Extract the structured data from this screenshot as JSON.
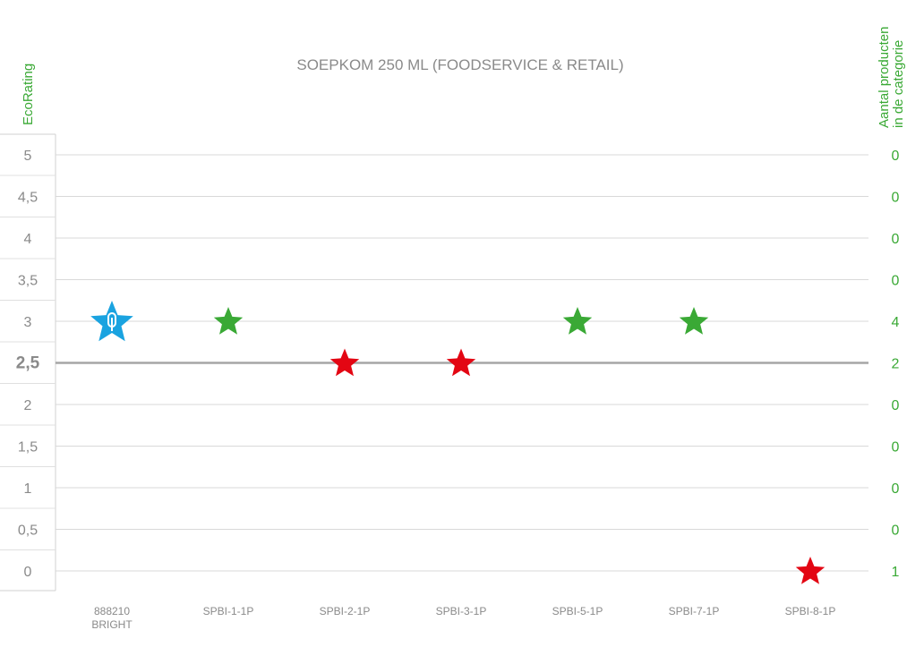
{
  "chart_data": {
    "type": "scatter",
    "title": "SOEPKOM 250 ML (FOODSERVICE & RETAIL)",
    "ylabel": "EcoRating",
    "ylabel_right": "Aantal producten\nin de categorie",
    "ylim": [
      0,
      5
    ],
    "y_ticks": [
      "0",
      "0,5",
      "1",
      "1,5",
      "2",
      "2,5",
      "3",
      "3,5",
      "4",
      "4,5",
      "5"
    ],
    "highlight_tick": "2,5",
    "right_counts": [
      "1",
      "0",
      "0",
      "0",
      "0",
      "2",
      "4",
      "0",
      "0",
      "0",
      "0"
    ],
    "grid": true,
    "categories": [
      "888210\nBRIGHT",
      "SPBI-1-1P",
      "SPBI-2-1P",
      "SPBI-3-1P",
      "SPBI-5-1P",
      "SPBI-7-1P",
      "SPBI-8-1P"
    ],
    "points": [
      {
        "category": "888210\nBRIGHT",
        "y": 3,
        "color": "#1aa3e0",
        "icon": "star-logo-icon"
      },
      {
        "category": "SPBI-1-1P",
        "y": 3,
        "color": "#3aa935",
        "icon": "star-icon"
      },
      {
        "category": "SPBI-2-1P",
        "y": 2.5,
        "color": "#e30613",
        "icon": "star-icon"
      },
      {
        "category": "SPBI-3-1P",
        "y": 2.5,
        "color": "#e30613",
        "icon": "star-icon"
      },
      {
        "category": "SPBI-5-1P",
        "y": 3,
        "color": "#3aa935",
        "icon": "star-icon"
      },
      {
        "category": "SPBI-7-1P",
        "y": 3,
        "color": "#3aa935",
        "icon": "star-icon"
      },
      {
        "category": "SPBI-8-1P",
        "y": 0,
        "color": "#e30613",
        "icon": "star-icon"
      }
    ],
    "colors": {
      "axis_text": "#8a8a8a",
      "right_text": "#3aa935",
      "grid": "#d9d9d9",
      "threshold": "#a6a6a6"
    }
  }
}
